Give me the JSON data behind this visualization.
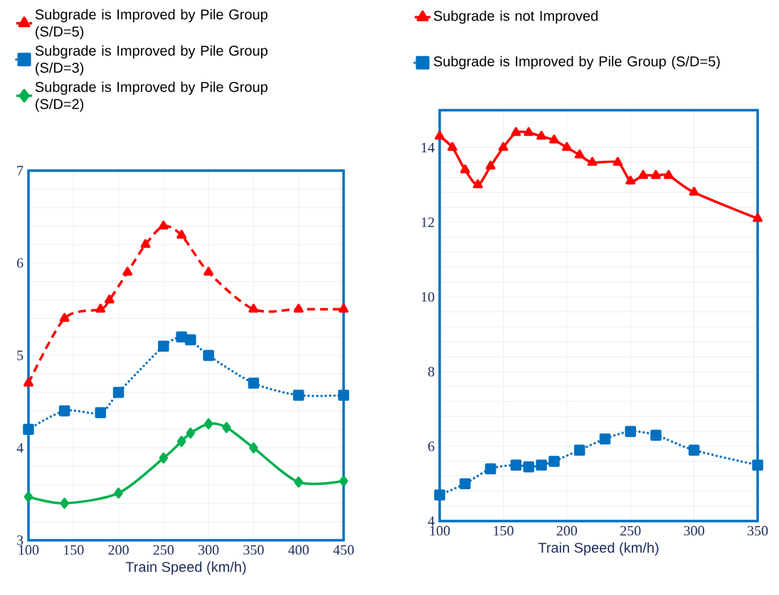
{
  "chart_data": [
    {
      "type": "line",
      "xlabel": "Train Speed (km/h)",
      "xlim": [
        100,
        450
      ],
      "xticks": [
        100,
        150,
        200,
        250,
        300,
        350,
        400,
        450
      ],
      "ylim": [
        3,
        7
      ],
      "yticks": [
        3,
        4,
        5,
        6,
        7
      ],
      "grid": true,
      "legend": "top left",
      "series": [
        {
          "name": "Subgrade is Improved by Pile Group (S/D=5)",
          "color": "#ff0000",
          "marker": "triangle",
          "line_style": "dashed",
          "x": [
            100,
            140,
            180,
            190,
            210,
            230,
            250,
            270,
            300,
            350,
            400,
            450
          ],
          "values": [
            4.7,
            5.4,
            5.5,
            5.6,
            5.9,
            6.2,
            6.4,
            6.3,
            5.9,
            5.5,
            5.5,
            5.5
          ]
        },
        {
          "name": "Subgrade is Improved by Pile Group (S/D=3)",
          "color": "#0070c0",
          "marker": "square",
          "line_style": "dotted",
          "x": [
            100,
            140,
            180,
            200,
            250,
            270,
            280,
            300,
            350,
            400,
            450
          ],
          "values": [
            4.2,
            4.4,
            4.38,
            4.6,
            5.1,
            5.2,
            5.17,
            5.0,
            4.7,
            4.57,
            4.57
          ]
        },
        {
          "name": "Subgrade is  Improved by Pile Group (S/D=2)",
          "color": "#00b050",
          "marker": "diamond",
          "line_style": "solid",
          "x": [
            100,
            140,
            200,
            250,
            270,
            280,
            300,
            320,
            350,
            400,
            450
          ],
          "values": [
            3.47,
            3.4,
            3.51,
            3.89,
            4.07,
            4.16,
            4.26,
            4.22,
            4.0,
            3.63,
            3.64
          ]
        }
      ]
    },
    {
      "type": "line",
      "xlabel": "Train Speed (km/h)",
      "xlim": [
        100,
        350
      ],
      "xticks": [
        100,
        150,
        200,
        250,
        300,
        350
      ],
      "ylim": [
        4,
        15
      ],
      "yticks": [
        4,
        6,
        8,
        10,
        12,
        14
      ],
      "grid": true,
      "legend": "top left",
      "series": [
        {
          "name": "Subgrade is not Improved",
          "color": "#ff0000",
          "marker": "triangle",
          "line_style": "solid",
          "x": [
            100,
            110,
            120,
            130,
            140,
            150,
            160,
            170,
            180,
            190,
            200,
            210,
            220,
            240,
            250,
            260,
            270,
            280,
            300,
            350
          ],
          "values": [
            14.3,
            14.0,
            13.4,
            13.0,
            13.5,
            14.0,
            14.4,
            14.4,
            14.3,
            14.2,
            14.0,
            13.8,
            13.6,
            13.6,
            13.1,
            13.25,
            13.25,
            13.25,
            12.8,
            12.1
          ]
        },
        {
          "name": "Subgrade is Improved by Pile Group (S/D=5)",
          "color": "#0070c0",
          "marker": "square",
          "line_style": "dotted",
          "x": [
            100,
            120,
            140,
            160,
            170,
            180,
            190,
            210,
            230,
            250,
            270,
            300,
            350
          ],
          "values": [
            4.7,
            5.0,
            5.4,
            5.5,
            5.45,
            5.5,
            5.6,
            5.9,
            6.2,
            6.4,
            6.3,
            5.9,
            5.5
          ]
        }
      ]
    }
  ]
}
